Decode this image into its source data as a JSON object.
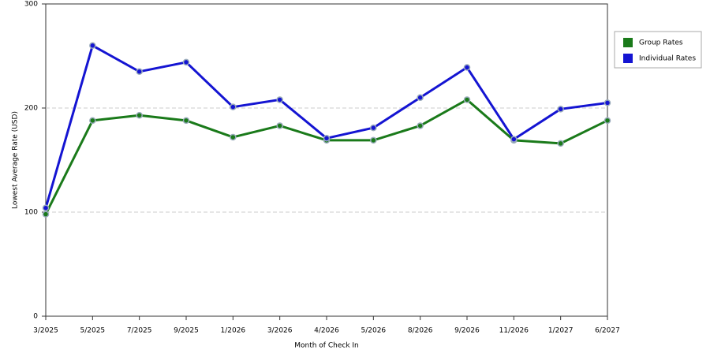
{
  "chart_data": {
    "type": "line",
    "x_label": "Month of Check In",
    "y_label": "Lowest Average Rate (USD)",
    "categories": [
      "3/2025",
      "5/2025",
      "7/2025",
      "9/2025",
      "1/2026",
      "3/2026",
      "4/2026",
      "5/2026",
      "8/2026",
      "9/2026",
      "11/2026",
      "1/2027",
      "6/2027"
    ],
    "series": [
      {
        "name": "Group Rates",
        "color": "#1a7a1a",
        "values": [
          98,
          188,
          193,
          188,
          172,
          183,
          169,
          169,
          183,
          208,
          169,
          166,
          188
        ]
      },
      {
        "name": "Individual Rates",
        "color": "#1414d2",
        "values": [
          104,
          260,
          235,
          244,
          201,
          208,
          171,
          181,
          210,
          239,
          170,
          199,
          205
        ]
      }
    ],
    "ylim": [
      0,
      300
    ],
    "yticks": [
      0,
      100,
      200,
      300
    ],
    "grid": true,
    "legend": "right"
  }
}
